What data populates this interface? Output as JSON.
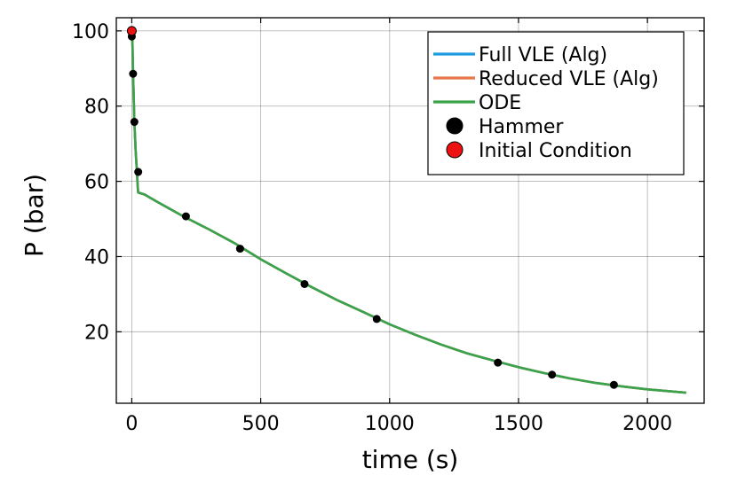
{
  "chart_data": {
    "type": "line",
    "xlabel": "time (s)",
    "ylabel": "P (bar)",
    "xlim": [
      -60,
      2220
    ],
    "ylim": [
      1,
      103.5
    ],
    "grid": true,
    "legend_position": "top-right",
    "x_ticks": [
      {
        "value": 0,
        "label": "0"
      },
      {
        "value": 500,
        "label": "500"
      },
      {
        "value": 1000,
        "label": "1000"
      },
      {
        "value": 1500,
        "label": "1500"
      },
      {
        "value": 2000,
        "label": "2000"
      }
    ],
    "y_ticks": [
      {
        "value": 20,
        "label": "20"
      },
      {
        "value": 40,
        "label": "40"
      },
      {
        "value": 60,
        "label": "60"
      },
      {
        "value": 80,
        "label": "80"
      },
      {
        "value": 100,
        "label": "100"
      }
    ],
    "series": [
      {
        "name": "Full VLE (Alg)",
        "kind": "line",
        "color": "#1f9be0",
        "x": [
          0,
          2,
          5,
          10,
          15,
          20,
          24,
          25,
          50,
          100,
          200,
          300,
          400,
          500,
          600,
          700,
          800,
          900,
          1000,
          1100,
          1200,
          1300,
          1400,
          1500,
          1600,
          1700,
          1800,
          1900,
          2000,
          2100,
          2150
        ],
        "y": [
          100,
          98.5,
          88.5,
          76,
          68,
          62.5,
          57.5,
          57,
          56.5,
          54.5,
          50.7,
          47.2,
          43.5,
          39.3,
          35.5,
          31.8,
          28.3,
          25.2,
          22.0,
          19.2,
          16.6,
          14.3,
          12.4,
          10.6,
          9.0,
          7.6,
          6.4,
          5.5,
          4.7,
          4.1,
          3.8
        ]
      },
      {
        "name": "Reduced VLE (Alg)",
        "kind": "line",
        "color": "#e8764a",
        "x": [
          0,
          2,
          5,
          10,
          15,
          20,
          24,
          25,
          50,
          100,
          200,
          300,
          400,
          500,
          600,
          700,
          800,
          900,
          1000,
          1100,
          1200,
          1300,
          1400,
          1500,
          1600,
          1700,
          1800,
          1900,
          2000,
          2100,
          2150
        ],
        "y": [
          100,
          98.5,
          88.5,
          76,
          68,
          62.5,
          57.5,
          57,
          56.5,
          54.5,
          50.7,
          47.2,
          43.5,
          39.3,
          35.5,
          31.8,
          28.3,
          25.2,
          22.0,
          19.2,
          16.6,
          14.3,
          12.4,
          10.6,
          9.0,
          7.6,
          6.4,
          5.5,
          4.7,
          4.1,
          3.8
        ]
      },
      {
        "name": "ODE",
        "kind": "line",
        "color": "#3aa34a",
        "x": [
          0,
          2,
          5,
          10,
          15,
          20,
          24,
          25,
          50,
          100,
          200,
          300,
          400,
          500,
          600,
          700,
          800,
          900,
          1000,
          1100,
          1200,
          1300,
          1400,
          1500,
          1600,
          1700,
          1800,
          1900,
          2000,
          2100,
          2150
        ],
        "y": [
          100,
          98.5,
          88.5,
          76,
          68,
          62.5,
          57.5,
          57,
          56.5,
          54.5,
          50.7,
          47.2,
          43.5,
          39.3,
          35.5,
          31.8,
          28.3,
          25.2,
          22.0,
          19.2,
          16.6,
          14.3,
          12.4,
          10.6,
          9.0,
          7.6,
          6.4,
          5.5,
          4.7,
          4.1,
          3.8
        ]
      },
      {
        "name": "Hammer",
        "kind": "scatter",
        "color": "#000000",
        "x": [
          0,
          5,
          10,
          25,
          210,
          420,
          670,
          950,
          1420,
          1630,
          1870
        ],
        "y": [
          98.5,
          88.6,
          75.8,
          62.5,
          50.7,
          42.1,
          32.7,
          23.4,
          11.8,
          8.6,
          5.9
        ]
      },
      {
        "name": "Initial Condition",
        "kind": "scatter",
        "color": "#ee1111",
        "x": [
          0
        ],
        "y": [
          100
        ]
      }
    ]
  }
}
